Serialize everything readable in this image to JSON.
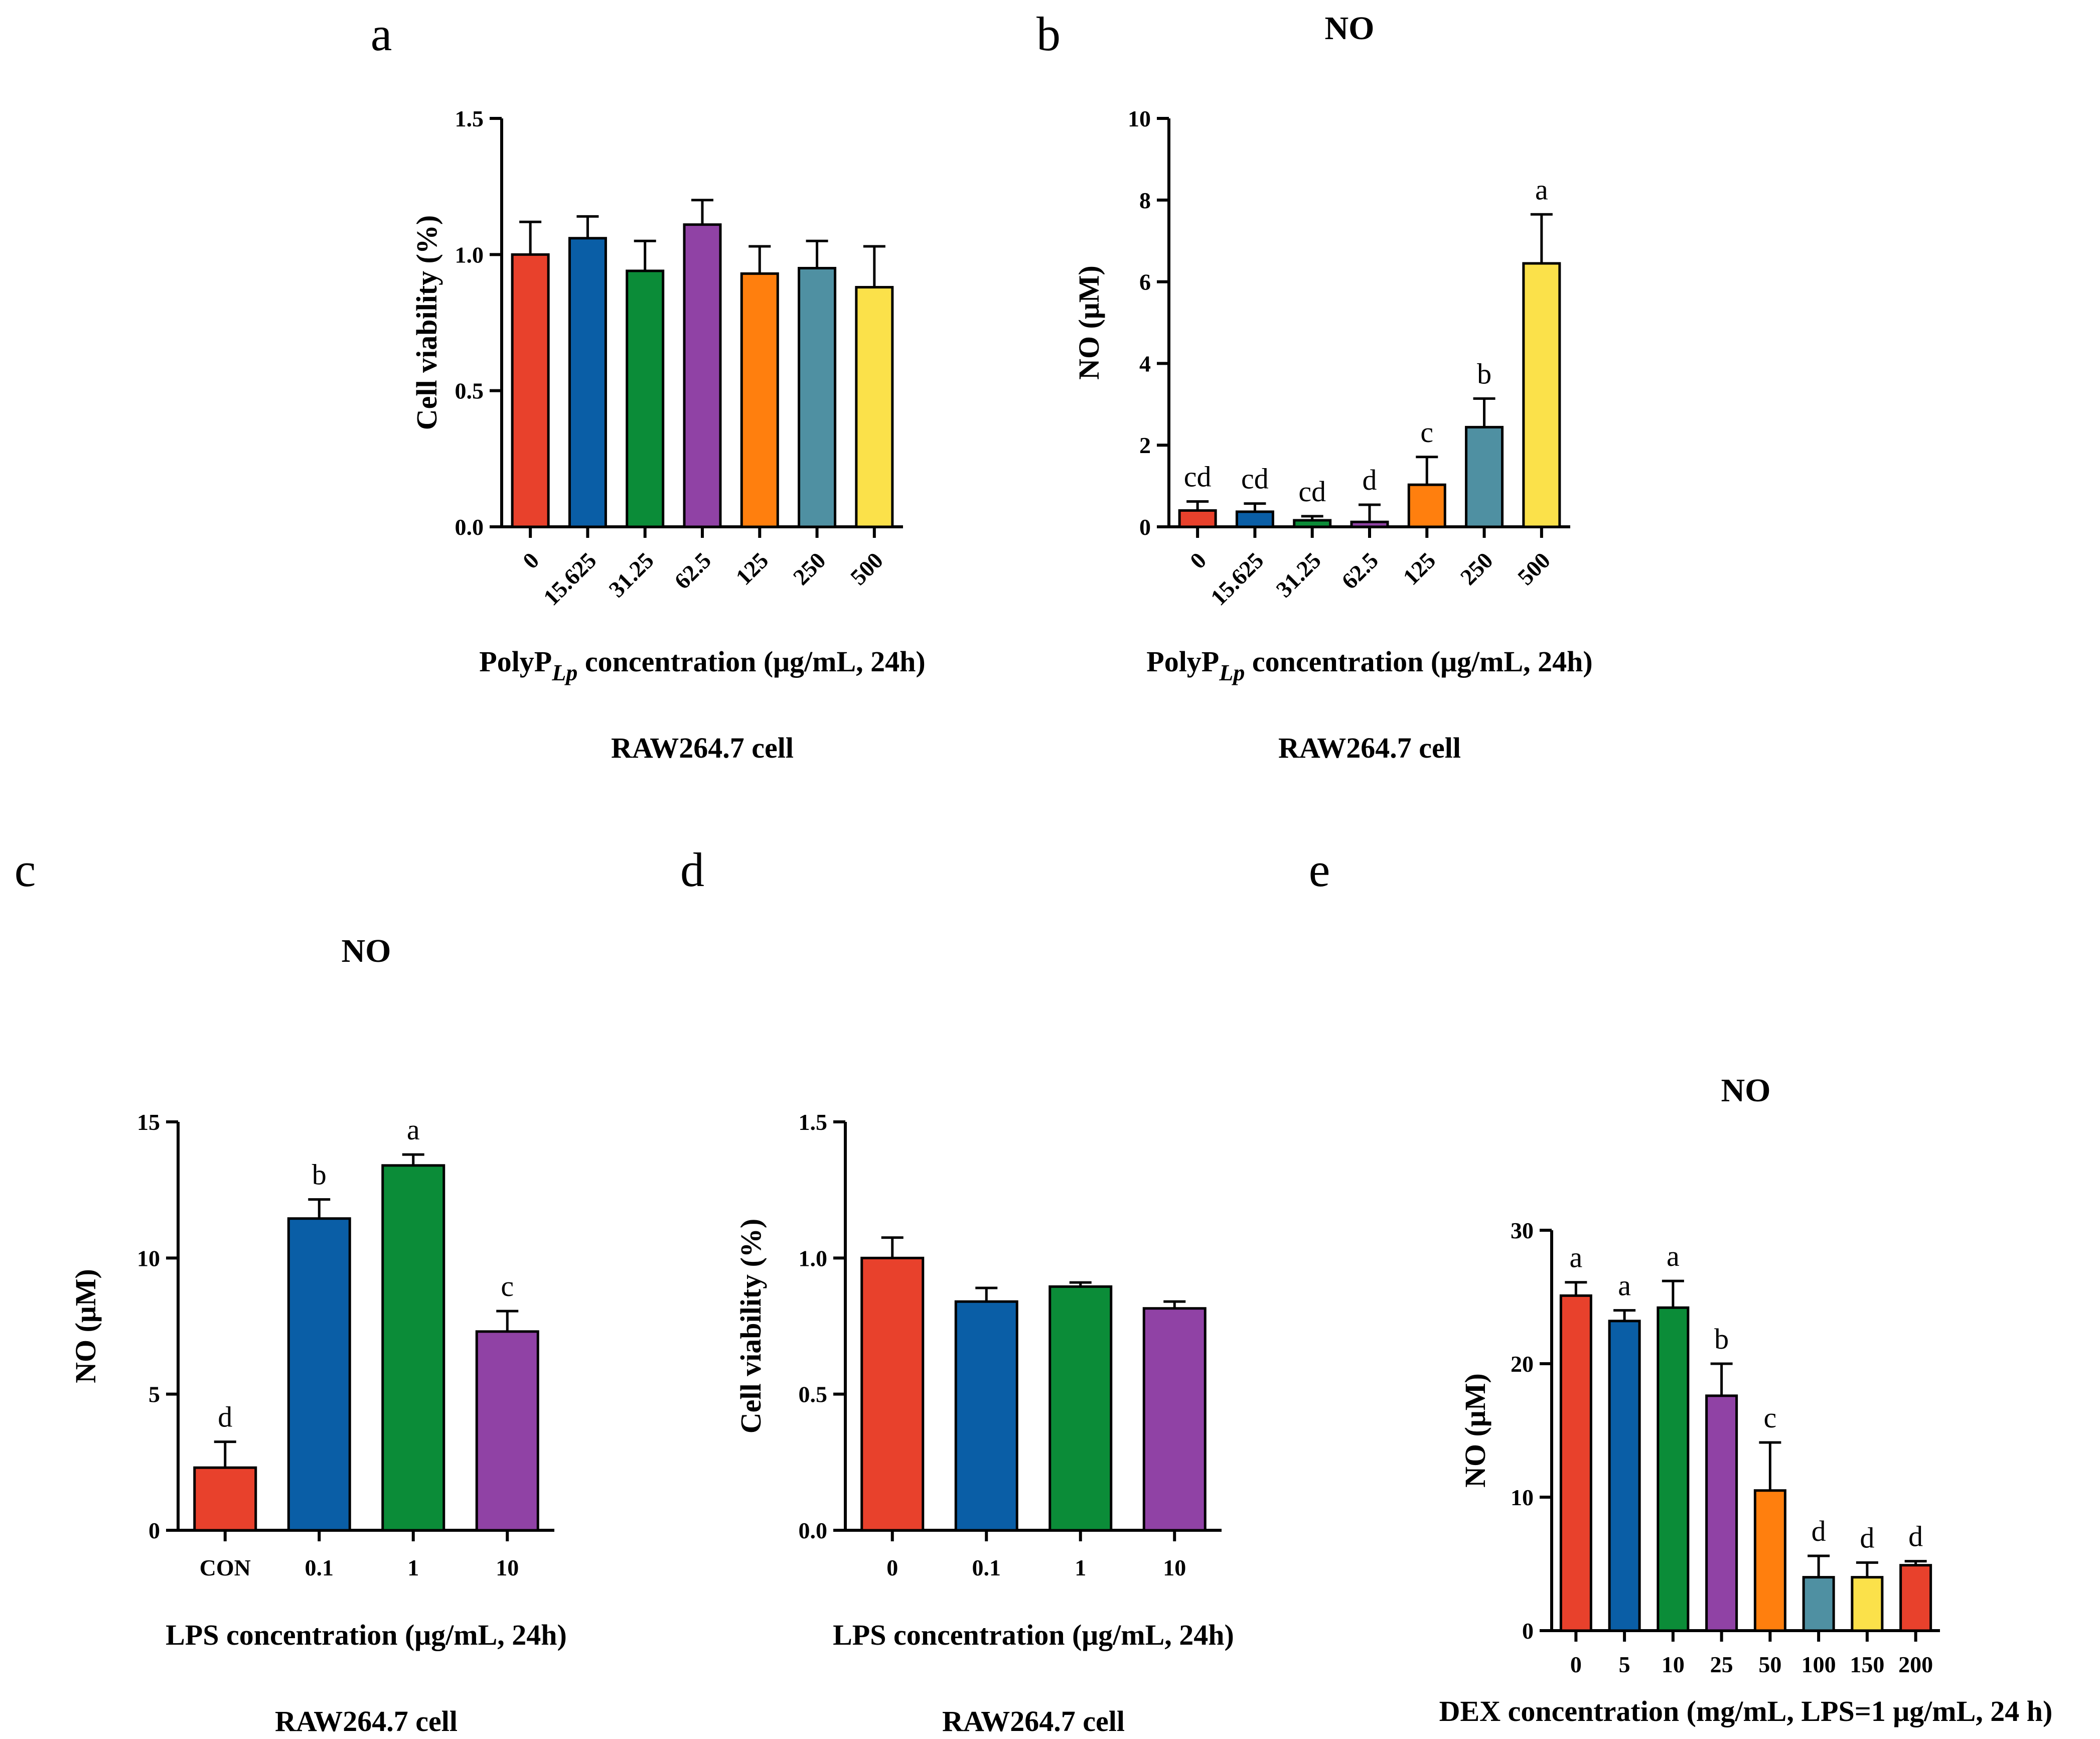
{
  "colors": [
    "#e8412c",
    "#0a5ea6",
    "#0b8c38",
    "#9042a5",
    "#ff7f0e",
    "#4f90a2",
    "#fbe14a"
  ],
  "chart_data": [
    {
      "id": "a",
      "panel_letter": "a",
      "type": "bar",
      "title": "",
      "categories": [
        "0",
        "15.625",
        "31.25",
        "62.5",
        "125",
        "250",
        "500"
      ],
      "values": [
        1.0,
        1.06,
        0.94,
        1.11,
        0.93,
        0.95,
        0.88
      ],
      "errors": [
        0.12,
        0.08,
        0.11,
        0.09,
        0.1,
        0.1,
        0.15
      ],
      "significance": [],
      "ylabel": "Cell viability (%)",
      "xlabel_prefix": "PolyP",
      "xlabel_subscript": "Lp",
      "xlabel_suffix": " concentration (μg/mL, 24h)",
      "cell_label": "RAW264.7 cell",
      "ylim": [
        0,
        1.5
      ],
      "yticks": [
        0.0,
        0.5,
        1.0,
        1.5
      ],
      "ytick_labels": [
        "0.0",
        "0.5",
        "1.0",
        "1.5"
      ],
      "rotated_ticks": true,
      "grid": false
    },
    {
      "id": "b",
      "panel_letter": "b",
      "type": "bar",
      "title": "NO",
      "categories": [
        "0",
        "15.625",
        "31.25",
        "62.5",
        "125",
        "250",
        "500"
      ],
      "values": [
        0.4,
        0.37,
        0.16,
        0.12,
        1.03,
        2.44,
        6.45
      ],
      "errors": [
        0.22,
        0.2,
        0.1,
        0.42,
        0.68,
        0.7,
        1.2
      ],
      "significance": [
        "cd",
        "cd",
        "cd",
        "d",
        "c",
        "b",
        "a"
      ],
      "ylabel": "NO (μM)",
      "xlabel_prefix": "PolyP",
      "xlabel_subscript": "Lp",
      "xlabel_suffix": " concentration (μg/mL, 24h)",
      "cell_label": "RAW264.7 cell",
      "ylim": [
        0,
        10
      ],
      "yticks": [
        0,
        2,
        4,
        6,
        8,
        10
      ],
      "ytick_labels": [
        "0",
        "2",
        "4",
        "6",
        "8",
        "10"
      ],
      "rotated_ticks": true,
      "grid": false
    },
    {
      "id": "c",
      "panel_letter": "c",
      "type": "bar",
      "title": "NO",
      "categories": [
        "CON",
        "0.1",
        "1",
        "10"
      ],
      "values": [
        2.3,
        11.45,
        13.4,
        7.3
      ],
      "errors": [
        0.95,
        0.7,
        0.4,
        0.75
      ],
      "significance": [
        "d",
        "b",
        "a",
        "c"
      ],
      "ylabel": "NO (μM)",
      "xlabel": "LPS concentration (μg/mL, 24h)",
      "cell_label": "RAW264.7 cell",
      "ylim": [
        0,
        15
      ],
      "yticks": [
        0,
        5,
        10,
        15
      ],
      "ytick_labels": [
        "0",
        "5",
        "10",
        "15"
      ],
      "rotated_ticks": false,
      "grid": false
    },
    {
      "id": "d",
      "panel_letter": "d",
      "type": "bar",
      "title": "",
      "categories": [
        "0",
        "0.1",
        "1",
        "10"
      ],
      "values": [
        1.0,
        0.84,
        0.895,
        0.815
      ],
      "errors": [
        0.075,
        0.05,
        0.015,
        0.025
      ],
      "significance": [],
      "ylabel": "Cell viability (%)",
      "xlabel": "LPS concentration (μg/mL, 24h)",
      "cell_label": "RAW264.7 cell",
      "ylim": [
        0,
        1.5
      ],
      "yticks": [
        0.0,
        0.5,
        1.0,
        1.5
      ],
      "ytick_labels": [
        "0.0",
        "0.5",
        "1.0",
        "1.5"
      ],
      "rotated_ticks": false,
      "grid": false
    },
    {
      "id": "e",
      "panel_letter": "e",
      "type": "bar",
      "title": "NO",
      "categories": [
        "0",
        "5",
        "10",
        "25",
        "50",
        "100",
        "150",
        "200"
      ],
      "values": [
        25.1,
        23.2,
        24.2,
        17.6,
        10.5,
        4.0,
        4.0,
        4.9
      ],
      "errors": [
        1.0,
        0.8,
        2.0,
        2.4,
        3.6,
        1.6,
        1.1,
        0.3
      ],
      "significance": [
        "a",
        "a",
        "a",
        "b",
        "c",
        "d",
        "d",
        "d"
      ],
      "ylabel": "NO (μM)",
      "xlabel": "DEX concentration (mg/mL, LPS=1 μg/mL, 24 h)",
      "ylim": [
        0,
        30
      ],
      "yticks": [
        0,
        10,
        20,
        30
      ],
      "ytick_labels": [
        "0",
        "10",
        "20",
        "30"
      ],
      "rotated_ticks": false,
      "grid": false
    }
  ]
}
